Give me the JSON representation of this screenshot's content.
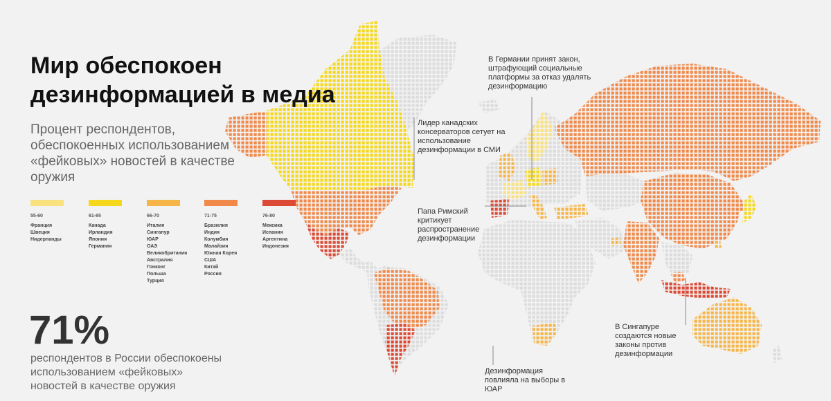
{
  "title": [
    "Мир обеспокоен",
    "дезинформацией в медиа"
  ],
  "subtitle": [
    "Процент респондентов,",
    "обеспокоенных использованием",
    "«фейковых» новостей в качестве",
    "оружия"
  ],
  "legend": [
    {
      "range": "55-60",
      "color": "#f9e27e",
      "countries": [
        "Франция",
        "Швеция",
        "Нидерланды"
      ]
    },
    {
      "range": "61-65",
      "color": "#f5d81c",
      "countries": [
        "Канада",
        "Ирландия",
        "Япония",
        "Германия"
      ]
    },
    {
      "range": "66-70",
      "color": "#f6b548",
      "countries": [
        "Италия",
        "Сингапур",
        "ЮАР",
        "ОАЭ",
        "Великобритания",
        "Австралия",
        "Гонконг",
        "Польша",
        "Турция"
      ]
    },
    {
      "range": "71-75",
      "color": "#f0894a",
      "countries": [
        "Бразилия",
        "Индия",
        "Колумбия",
        "Малайзия",
        "Южная Корея",
        "США",
        "Китай",
        "Россия"
      ]
    },
    {
      "range": "76-80",
      "color": "#dc4a35",
      "countries": [
        "Мексика",
        "Испания",
        "Аргентина",
        "Индонезия"
      ]
    }
  ],
  "stat": {
    "value": "71%",
    "caption": [
      "респондентов в России обеспокоены",
      "использованием «фейковых»",
      "новостей в качестве оружия"
    ]
  },
  "notes": {
    "germany": [
      "В Германии принят закон,",
      "штрафующий социальные",
      "платформы за отказ удалять",
      "дезинформацию"
    ],
    "canada": [
      "Лидер канадских",
      "консерваторов сетует на",
      "использование",
      "дезинформации в СМИ"
    ],
    "pope": [
      "Папа Римский",
      "критикует",
      "распространение",
      "дезинформации"
    ],
    "singapore": [
      "В Сингапуре",
      "создаются новые",
      "законы против",
      "дезинформации"
    ],
    "south_africa": [
      "Дезинформация",
      "повлияла на выборы в",
      "ЮАР"
    ]
  },
  "colors": {
    "no_data": "#dcdcdc",
    "background": "#f2f2f2",
    "leader_line": "#888888"
  }
}
